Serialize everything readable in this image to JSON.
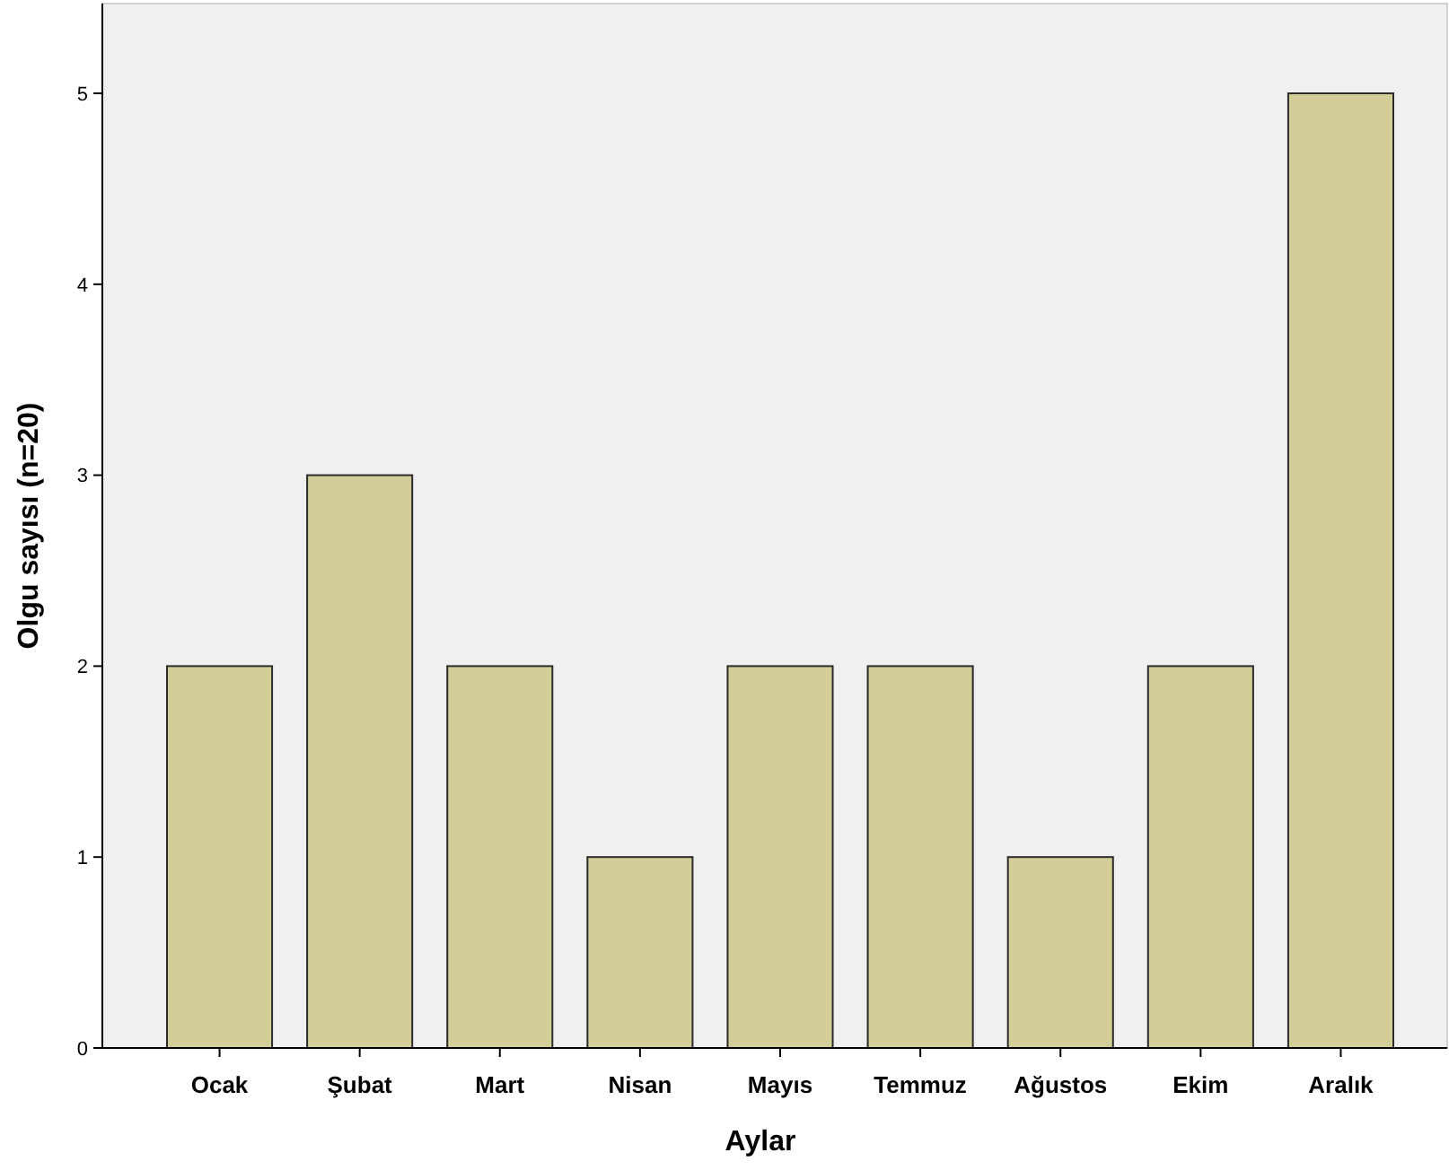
{
  "chart_data": {
    "type": "bar",
    "xlabel": "Aylar",
    "ylabel": "Olgu sayısı (n=20)",
    "categories": [
      "Ocak",
      "Şubat",
      "Mart",
      "Nisan",
      "Mayıs",
      "Temmuz",
      "Ağustos",
      "Ekim",
      "Aralık"
    ],
    "values": [
      2,
      3,
      2,
      1,
      2,
      2,
      1,
      2,
      5
    ],
    "color": "#d3ce97",
    "ylim": [
      0,
      5.47
    ],
    "yticks": [
      0,
      1,
      2,
      3,
      4,
      5
    ],
    "grid": false
  }
}
